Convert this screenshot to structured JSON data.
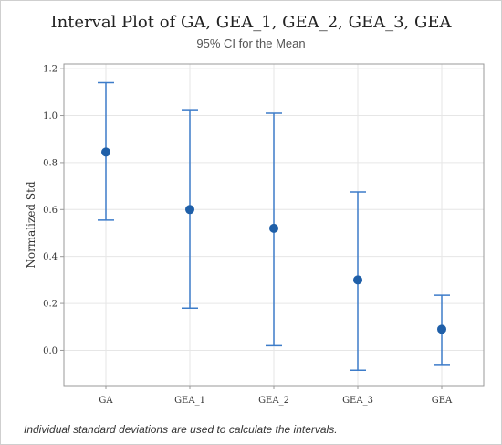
{
  "chart_data": {
    "type": "interval",
    "title": "Interval Plot of GA, GEA_1, GEA_2, GEA_3, GEA",
    "subtitle": "95% CI for the Mean",
    "ylabel": "Normalized Std",
    "xlabel": "",
    "categories": [
      "GA",
      "GEA_1",
      "GEA_2",
      "GEA_3",
      "GEA"
    ],
    "means": [
      0.845,
      0.6,
      0.52,
      0.3,
      0.09
    ],
    "lower": [
      0.555,
      0.18,
      0.02,
      -0.085,
      -0.06
    ],
    "upper": [
      1.14,
      1.025,
      1.01,
      0.675,
      0.235
    ],
    "ylim": [
      -0.15,
      1.22
    ],
    "yticks": [
      "0.0",
      "0.2",
      "0.4",
      "0.6",
      "0.8",
      "1.0",
      "1.2"
    ],
    "grid": true,
    "colors": {
      "marker": "#1f5fa8",
      "interval": "#3d7cc9",
      "grid": "#e6e6e6",
      "axis": "#999999"
    }
  },
  "footnote": "Individual standard deviations are used to calculate the intervals."
}
